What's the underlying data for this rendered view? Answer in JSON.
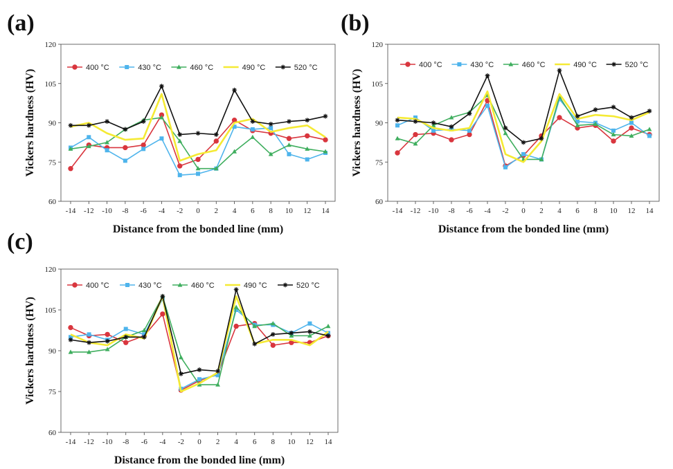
{
  "chart_data": [
    {
      "panel_label": "(a)",
      "type": "line",
      "xlabel": "Distance from the bonded line (mm)",
      "ylabel": "Vickers hardness (HV)",
      "x": [
        -14,
        -12,
        -10,
        -8,
        -6,
        -4,
        -2,
        0,
        2,
        4,
        6,
        8,
        10,
        12,
        14
      ],
      "xticks": [
        "-14",
        "-12",
        "-10",
        "-8",
        "-6",
        "-4",
        "-2",
        "0",
        "2",
        "4",
        "6",
        "8",
        "10",
        "12",
        "14"
      ],
      "yticks": [
        "60",
        "75",
        "90",
        "105",
        "120"
      ],
      "ylim": [
        60,
        120
      ],
      "series": [
        {
          "name": "400 °C",
          "color": "#d9363e",
          "marker": "circle",
          "values": [
            72.5,
            81.5,
            80.5,
            80.5,
            81.5,
            93,
            73.5,
            76,
            83,
            91,
            87,
            86,
            84,
            85,
            83.5
          ]
        },
        {
          "name": "430 °C",
          "color": "#4eb4ec",
          "marker": "square",
          "values": [
            80.5,
            84.5,
            79.5,
            75.5,
            80,
            84,
            70,
            70.5,
            72.5,
            88.5,
            87.5,
            88,
            78,
            76,
            78.5
          ]
        },
        {
          "name": "460 °C",
          "color": "#3fae5e",
          "marker": "triangle",
          "values": [
            80,
            81,
            82.5,
            87.5,
            91,
            92,
            83,
            72.5,
            72.5,
            79,
            84.5,
            78,
            81.5,
            80,
            79
          ]
        },
        {
          "name": "490 °C",
          "color": "#f5ea34",
          "marker": "none",
          "values": [
            88.5,
            90,
            86,
            83.5,
            84,
            101,
            75.5,
            78,
            79.5,
            90,
            91.5,
            86.5,
            88,
            89,
            84.5
          ]
        },
        {
          "name": "520 °C",
          "color": "#111111",
          "marker": "star",
          "values": [
            89,
            89,
            90.5,
            87.5,
            90.5,
            104,
            85.5,
            86,
            85.5,
            102.5,
            90.5,
            89.5,
            90.5,
            91,
            92.5
          ]
        }
      ]
    },
    {
      "panel_label": "(b)",
      "type": "line",
      "xlabel": "Distance from the bonded line (mm)",
      "ylabel": "Vickers hardness (HV)",
      "x": [
        -14,
        -12,
        -10,
        -8,
        -6,
        -4,
        -2,
        0,
        2,
        4,
        6,
        8,
        10,
        12,
        14
      ],
      "xticks": [
        "-14",
        "-12",
        "-10",
        "-8",
        "-6",
        "-4",
        "-2",
        "0",
        "2",
        "4",
        "6",
        "8",
        "10",
        "12",
        "14"
      ],
      "yticks": [
        "60",
        "75",
        "90",
        "105",
        "120"
      ],
      "ylim": [
        60,
        120
      ],
      "series": [
        {
          "name": "400 °C",
          "color": "#d9363e",
          "marker": "circle",
          "values": [
            78.5,
            85.5,
            86,
            83.5,
            85.5,
            98.5,
            73.5,
            77.5,
            85,
            92,
            88,
            89,
            83,
            88,
            85.5
          ]
        },
        {
          "name": "430 °C",
          "color": "#4eb4ec",
          "marker": "square",
          "values": [
            89,
            92,
            87,
            87.5,
            87,
            96.5,
            73,
            78,
            76,
            99,
            90.5,
            90,
            87,
            90,
            85
          ]
        },
        {
          "name": "460 °C",
          "color": "#3fae5e",
          "marker": "triangle",
          "values": [
            84,
            82,
            89,
            92,
            94,
            100.5,
            86,
            76,
            76,
            100,
            89,
            89.5,
            85.5,
            85,
            87.5
          ]
        },
        {
          "name": "490 °C",
          "color": "#f5ea34",
          "marker": "none",
          "values": [
            92,
            91.5,
            88,
            87,
            88,
            102,
            78,
            75,
            83,
            101,
            91.5,
            93,
            92.5,
            91,
            94
          ]
        },
        {
          "name": "520 °C",
          "color": "#111111",
          "marker": "star",
          "values": [
            91,
            90.5,
            90,
            88.5,
            93.5,
            108,
            88,
            82.5,
            84,
            110,
            92.5,
            95,
            96,
            92,
            94.5
          ]
        }
      ]
    },
    {
      "panel_label": "(c)",
      "type": "line",
      "xlabel": "Distance from the bonded line (mm)",
      "ylabel": "Vickers hardness (HV)",
      "x": [
        -14,
        -12,
        -10,
        -8,
        -6,
        -4,
        -2,
        0,
        2,
        4,
        6,
        8,
        10,
        12,
        14
      ],
      "xticks": [
        "-14",
        "-12",
        "-10",
        "-8",
        "-6",
        "-4",
        "-2",
        "0",
        "2",
        "4",
        "6",
        "8",
        "10",
        "12",
        "14"
      ],
      "yticks": [
        "60",
        "75",
        "90",
        "105",
        "120"
      ],
      "ylim": [
        60,
        120
      ],
      "series": [
        {
          "name": "400 °C",
          "color": "#d9363e",
          "marker": "circle",
          "values": [
            98.5,
            95.5,
            96,
            93,
            95.5,
            103.5,
            75.5,
            79,
            81.5,
            99,
            100,
            92,
            93,
            93,
            95.5
          ]
        },
        {
          "name": "430 °C",
          "color": "#4eb4ec",
          "marker": "square",
          "values": [
            95,
            96,
            94,
            98,
            96,
            109,
            76,
            79.5,
            81,
            105,
            99.5,
            99.5,
            96.5,
            100,
            96.5
          ]
        },
        {
          "name": "460 °C",
          "color": "#3fae5e",
          "marker": "triangle",
          "values": [
            89.5,
            89.5,
            90.5,
            95,
            97.5,
            110,
            87.5,
            77.5,
            77.5,
            106,
            99,
            100,
            95.5,
            95.5,
            99
          ]
        },
        {
          "name": "490 °C",
          "color": "#f5ea34",
          "marker": "none",
          "values": [
            96,
            93,
            92,
            96,
            94.5,
            110,
            75,
            78,
            82,
            110,
            92.5,
            94,
            94,
            92,
            97
          ]
        },
        {
          "name": "520 °C",
          "color": "#111111",
          "marker": "star",
          "values": [
            94,
            93,
            93.5,
            95,
            95,
            110,
            81.5,
            83,
            82.5,
            112.5,
            92.5,
            96,
            96.5,
            97,
            95.5
          ]
        }
      ]
    }
  ]
}
